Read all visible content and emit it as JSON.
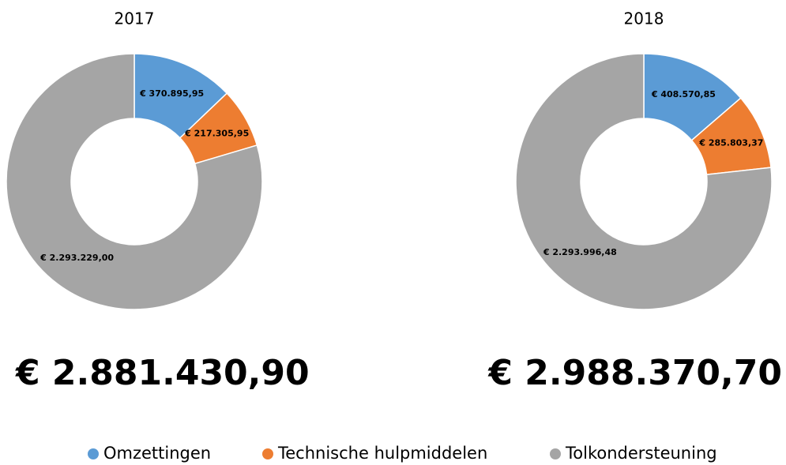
{
  "chart_data": [
    {
      "type": "donut",
      "title": "2017",
      "categories": [
        "Omzettingen",
        "Technische hulpmiddelen",
        "Tolkondersteuning"
      ],
      "values": [
        370895.95,
        217305.95,
        2293229.0
      ],
      "value_labels": [
        "€ 370.895,95",
        "€ 217.305,95",
        "€ 2.293.229,00"
      ],
      "colors": [
        "#5b9bd5",
        "#ed7d31",
        "#a5a5a5"
      ],
      "annotation": "€ 2.881.430,90"
    },
    {
      "type": "donut",
      "title": "2018",
      "categories": [
        "Omzettingen",
        "Technische hulpmiddelen",
        "Tolkondersteuning"
      ],
      "values": [
        408570.85,
        285803.37,
        2293996.48
      ],
      "value_labels": [
        "€ 408.570,85",
        "€ 285.803,37",
        "€ 2.293.996,48"
      ],
      "colors": [
        "#5b9bd5",
        "#ed7d31",
        "#a5a5a5"
      ],
      "annotation": "€ 2.988.370,70"
    }
  ]
}
